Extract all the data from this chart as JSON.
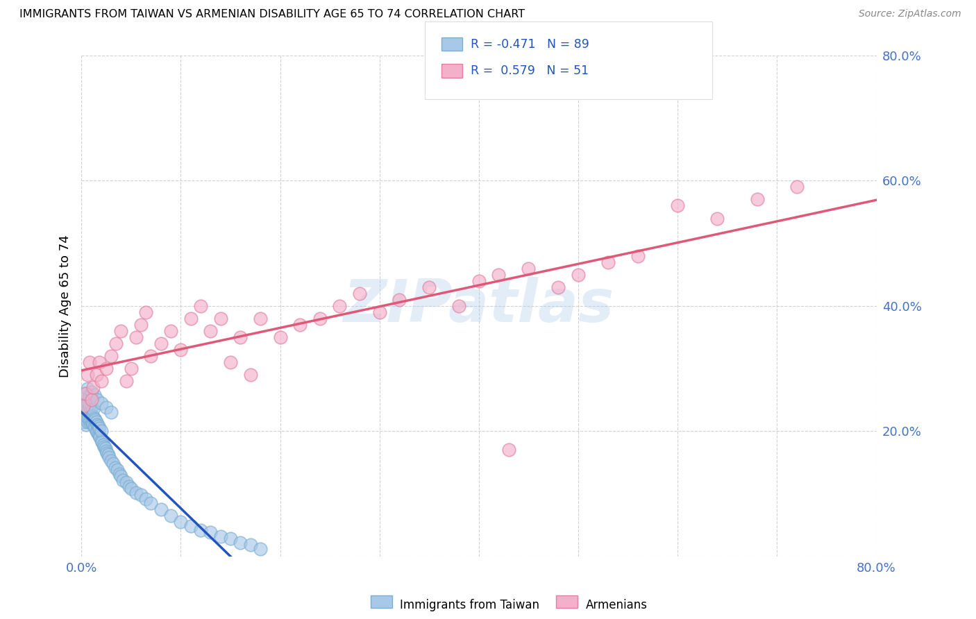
{
  "title": "IMMIGRANTS FROM TAIWAN VS ARMENIAN DISABILITY AGE 65 TO 74 CORRELATION CHART",
  "source": "Source: ZipAtlas.com",
  "ylabel": "Disability Age 65 to 74",
  "xlim": [
    0.0,
    0.8
  ],
  "ylim": [
    0.0,
    0.8
  ],
  "taiwan_color": "#a8c8e8",
  "taiwan_edge_color": "#7aaed0",
  "armenian_color": "#f4b0c8",
  "armenian_edge_color": "#e080a0",
  "taiwan_line_color": "#2255bb",
  "armenian_line_color": "#e05878",
  "taiwan_R": -0.471,
  "taiwan_N": 89,
  "armenian_R": 0.579,
  "armenian_N": 51,
  "watermark": "ZIPatlas",
  "legend_label_taiwan": "Immigrants from Taiwan",
  "legend_label_armenian": "Armenians",
  "taiwan_scatter_x": [
    0.001,
    0.002,
    0.002,
    0.003,
    0.003,
    0.003,
    0.004,
    0.004,
    0.004,
    0.005,
    0.005,
    0.005,
    0.005,
    0.006,
    0.006,
    0.006,
    0.007,
    0.007,
    0.007,
    0.008,
    0.008,
    0.008,
    0.009,
    0.009,
    0.01,
    0.01,
    0.01,
    0.011,
    0.011,
    0.012,
    0.012,
    0.012,
    0.013,
    0.013,
    0.014,
    0.014,
    0.015,
    0.015,
    0.016,
    0.016,
    0.017,
    0.017,
    0.018,
    0.018,
    0.019,
    0.02,
    0.02,
    0.021,
    0.022,
    0.023,
    0.024,
    0.025,
    0.026,
    0.027,
    0.028,
    0.03,
    0.032,
    0.034,
    0.036,
    0.038,
    0.04,
    0.042,
    0.045,
    0.048,
    0.05,
    0.055,
    0.06,
    0.065,
    0.07,
    0.08,
    0.09,
    0.1,
    0.11,
    0.12,
    0.13,
    0.14,
    0.15,
    0.16,
    0.17,
    0.18,
    0.004,
    0.006,
    0.008,
    0.01,
    0.013,
    0.016,
    0.02,
    0.025,
    0.03
  ],
  "taiwan_scatter_y": [
    0.22,
    0.225,
    0.245,
    0.215,
    0.23,
    0.25,
    0.22,
    0.235,
    0.248,
    0.21,
    0.225,
    0.24,
    0.255,
    0.215,
    0.228,
    0.242,
    0.22,
    0.233,
    0.245,
    0.215,
    0.228,
    0.24,
    0.218,
    0.23,
    0.215,
    0.225,
    0.238,
    0.212,
    0.225,
    0.21,
    0.222,
    0.235,
    0.208,
    0.22,
    0.205,
    0.218,
    0.2,
    0.215,
    0.198,
    0.21,
    0.195,
    0.208,
    0.192,
    0.205,
    0.19,
    0.185,
    0.2,
    0.182,
    0.178,
    0.175,
    0.172,
    0.168,
    0.165,
    0.162,
    0.158,
    0.152,
    0.148,
    0.142,
    0.138,
    0.132,
    0.128,
    0.122,
    0.118,
    0.112,
    0.108,
    0.102,
    0.098,
    0.092,
    0.085,
    0.075,
    0.065,
    0.055,
    0.048,
    0.042,
    0.038,
    0.032,
    0.028,
    0.022,
    0.018,
    0.012,
    0.26,
    0.268,
    0.255,
    0.262,
    0.258,
    0.25,
    0.245,
    0.238,
    0.23
  ],
  "armenian_scatter_x": [
    0.002,
    0.004,
    0.006,
    0.008,
    0.01,
    0.012,
    0.015,
    0.018,
    0.02,
    0.025,
    0.03,
    0.035,
    0.04,
    0.045,
    0.05,
    0.055,
    0.06,
    0.065,
    0.07,
    0.08,
    0.09,
    0.1,
    0.11,
    0.12,
    0.13,
    0.14,
    0.15,
    0.16,
    0.17,
    0.18,
    0.2,
    0.22,
    0.24,
    0.26,
    0.28,
    0.3,
    0.32,
    0.35,
    0.38,
    0.4,
    0.42,
    0.45,
    0.48,
    0.5,
    0.53,
    0.56,
    0.6,
    0.64,
    0.68,
    0.72,
    0.43
  ],
  "armenian_scatter_y": [
    0.24,
    0.26,
    0.29,
    0.31,
    0.25,
    0.27,
    0.29,
    0.31,
    0.28,
    0.3,
    0.32,
    0.34,
    0.36,
    0.28,
    0.3,
    0.35,
    0.37,
    0.39,
    0.32,
    0.34,
    0.36,
    0.33,
    0.38,
    0.4,
    0.36,
    0.38,
    0.31,
    0.35,
    0.29,
    0.38,
    0.35,
    0.37,
    0.38,
    0.4,
    0.42,
    0.39,
    0.41,
    0.43,
    0.4,
    0.44,
    0.45,
    0.46,
    0.43,
    0.45,
    0.47,
    0.48,
    0.56,
    0.54,
    0.57,
    0.59,
    0.17
  ]
}
